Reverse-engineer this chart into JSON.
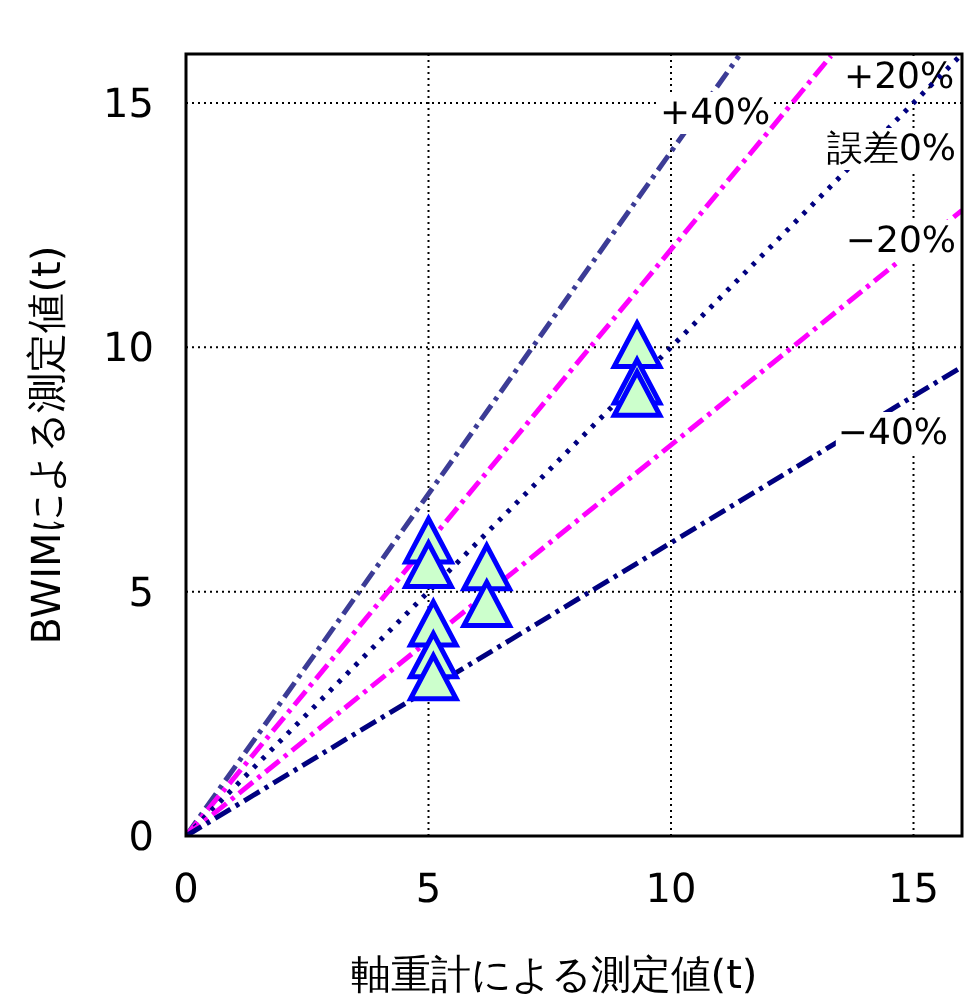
{
  "chart_data": {
    "type": "scatter",
    "xlabel": "軸重計による測定値(t)",
    "ylabel": "BWIMによる測定値(t)",
    "xlim": [
      0,
      16
    ],
    "ylim": [
      0,
      16
    ],
    "xticks": [
      0,
      5,
      10,
      15
    ],
    "yticks": [
      0,
      5,
      10,
      15
    ],
    "grid": true,
    "marker": "triangle",
    "series": [
      {
        "type": "line",
        "marker": "none",
        "name": "+40%",
        "color": "#3c3c96",
        "line_style": "dashed",
        "x": [
          0,
          11.4
        ],
        "values": [
          0,
          15.96
        ]
      },
      {
        "type": "line",
        "marker": "none",
        "name": "+20%",
        "color": "#ff00ff",
        "line_style": "dashed",
        "x": [
          0,
          13.3
        ],
        "values": [
          0,
          15.96
        ]
      },
      {
        "type": "line",
        "marker": "none",
        "name": "誤差0%",
        "color": "#000080",
        "line_style": "dotted",
        "x": [
          0,
          16
        ],
        "values": [
          0,
          16
        ]
      },
      {
        "type": "line",
        "marker": "none",
        "name": "−20%",
        "color": "#ff00ff",
        "line_style": "dashed",
        "x": [
          0,
          16
        ],
        "values": [
          0,
          12.8
        ]
      },
      {
        "type": "line",
        "marker": "none",
        "name": "−40%",
        "color": "#000080",
        "line_style": "dashed",
        "x": [
          0,
          16
        ],
        "values": [
          0,
          9.6
        ]
      },
      {
        "color": "#ccffcc",
        "x": [
          5.0,
          5.0,
          5.1,
          5.1,
          5.1,
          6.2,
          6.2,
          9.3,
          9.3,
          9.3
        ],
        "values": [
          6.0,
          5.5,
          4.3,
          3.65,
          3.2,
          5.45,
          4.7,
          10.0,
          9.25,
          9.0
        ]
      }
    ]
  }
}
